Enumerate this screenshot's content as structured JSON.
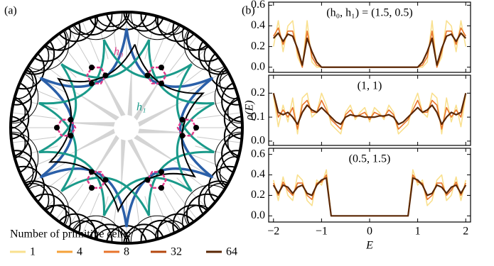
{
  "panel_labels": [
    "(a)",
    "(b)"
  ],
  "diagram": {
    "labels": [
      "h₀",
      "h₁"
    ]
  },
  "legend": {
    "title": "Number of primitive cells:",
    "entries": [
      {
        "name": "1",
        "color": "#f9e08e"
      },
      {
        "name": "4",
        "color": "#f5a23a"
      },
      {
        "name": "8",
        "color": "#e8742c"
      },
      {
        "name": "32",
        "color": "#b5480f"
      },
      {
        "name": "64",
        "color": "#5a2705"
      }
    ]
  },
  "chart_data": [
    {
      "type": "line",
      "annotation": "(h₀, h₁) = (1.5, 0.5)",
      "x": [
        -2,
        -1.9,
        -1.8,
        -1.7,
        -1.6,
        -1.5,
        -1.4,
        -1.3,
        -1.2,
        -1.1,
        -1,
        -0.9,
        -0.8,
        -0.7,
        -0.6,
        -0.5,
        -0.4,
        -0.3,
        -0.2,
        -0.1,
        0,
        0.1,
        0.2,
        0.3,
        0.4,
        0.5,
        0.6,
        0.7,
        0.8,
        0.9,
        1,
        1.1,
        1.2,
        1.3,
        1.4,
        1.5,
        1.6,
        1.7,
        1.8,
        1.9,
        2
      ],
      "xlim": [
        -2.1,
        2.1
      ],
      "ylim": [
        -0.05,
        0.63
      ],
      "yticks": [
        {
          "value": 0,
          "label": "0.0"
        },
        0.2,
        0.4,
        0.6
      ],
      "series": [
        {
          "color": "#f9e08e",
          "values": [
            0.2,
            0.45,
            0.15,
            0.4,
            0.45,
            0.1,
            0,
            0.45,
            0.05,
            0,
            0,
            0,
            0,
            0,
            0,
            0,
            0,
            0,
            0,
            0,
            0,
            0,
            0,
            0,
            0,
            0,
            0,
            0,
            0,
            0,
            0,
            0,
            0.05,
            0.45,
            0,
            0.1,
            0.45,
            0.4,
            0.15,
            0.45,
            0.2
          ]
        },
        {
          "color": "#e8742c",
          "values": [
            0.3,
            0.38,
            0.22,
            0.35,
            0.35,
            0.15,
            0,
            0.35,
            0.1,
            0.02,
            0,
            0,
            0,
            0,
            0,
            0,
            0,
            0,
            0,
            0,
            0,
            0,
            0,
            0,
            0,
            0,
            0,
            0,
            0,
            0,
            0,
            0.02,
            0.1,
            0.35,
            0,
            0.15,
            0.35,
            0.35,
            0.22,
            0.38,
            0.3
          ]
        },
        {
          "color": "#5a2705",
          "values": [
            0.28,
            0.33,
            0.25,
            0.32,
            0.3,
            0.18,
            0.02,
            0.28,
            0.15,
            0.05,
            0,
            0,
            0,
            0,
            0,
            0,
            0,
            0,
            0,
            0,
            0,
            0,
            0,
            0,
            0,
            0,
            0,
            0,
            0,
            0,
            0,
            0.05,
            0.15,
            0.28,
            0.02,
            0.18,
            0.3,
            0.32,
            0.25,
            0.33,
            0.28
          ]
        }
      ]
    },
    {
      "type": "line",
      "annotation": "(1, 1)",
      "ylabel": "ρ(E)",
      "x": [
        -2,
        -1.9,
        -1.8,
        -1.7,
        -1.6,
        -1.5,
        -1.4,
        -1.3,
        -1.2,
        -1.1,
        -1,
        -0.9,
        -0.8,
        -0.7,
        -0.6,
        -0.5,
        -0.4,
        -0.3,
        -0.2,
        -0.1,
        0,
        0.1,
        0.2,
        0.3,
        0.4,
        0.5,
        0.6,
        0.7,
        0.8,
        0.9,
        1,
        1.1,
        1.2,
        1.3,
        1.4,
        1.5,
        1.6,
        1.7,
        1.8,
        1.9,
        2
      ],
      "xlim": [
        -2.1,
        2.1
      ],
      "ylim": [
        -0.018,
        0.275
      ],
      "yticks": [
        {
          "value": 0,
          "label": "0.0"
        },
        0.1,
        0.2
      ],
      "series": [
        {
          "color": "#f9e08e",
          "values": [
            0.19,
            0.06,
            0.15,
            0.08,
            0.18,
            0.03,
            0.18,
            0.2,
            0.1,
            0.12,
            0.2,
            0.15,
            0.07,
            0.05,
            0.03,
            0.12,
            0.15,
            0.09,
            0.12,
            0.14,
            0.08,
            0.14,
            0.12,
            0.09,
            0.15,
            0.12,
            0.03,
            0.05,
            0.07,
            0.15,
            0.2,
            0.12,
            0.1,
            0.2,
            0.18,
            0.03,
            0.18,
            0.08,
            0.15,
            0.06,
            0.19
          ]
        },
        {
          "color": "#e8742c",
          "values": [
            0.2,
            0.1,
            0.13,
            0.1,
            0.14,
            0.05,
            0.15,
            0.17,
            0.12,
            0.12,
            0.17,
            0.13,
            0.09,
            0.07,
            0.05,
            0.11,
            0.13,
            0.1,
            0.11,
            0.12,
            0.09,
            0.12,
            0.11,
            0.1,
            0.13,
            0.11,
            0.05,
            0.07,
            0.09,
            0.13,
            0.17,
            0.12,
            0.12,
            0.17,
            0.15,
            0.05,
            0.14,
            0.1,
            0.13,
            0.1,
            0.2
          ]
        },
        {
          "color": "#5a2705",
          "values": [
            0.2,
            0.12,
            0.11,
            0.12,
            0.1,
            0.07,
            0.12,
            0.15,
            0.13,
            0.12,
            0.14,
            0.12,
            0.1,
            0.08,
            0.07,
            0.1,
            0.11,
            0.105,
            0.105,
            0.1,
            0.1,
            0.1,
            0.105,
            0.105,
            0.11,
            0.1,
            0.07,
            0.08,
            0.1,
            0.12,
            0.14,
            0.12,
            0.13,
            0.15,
            0.12,
            0.07,
            0.1,
            0.12,
            0.11,
            0.12,
            0.2
          ]
        }
      ]
    },
    {
      "type": "line",
      "annotation": "(0.5, 1.5)",
      "xlabel": "E",
      "x": [
        -2,
        -1.9,
        -1.8,
        -1.7,
        -1.6,
        -1.5,
        -1.4,
        -1.3,
        -1.2,
        -1.1,
        -1,
        -0.9,
        -0.8,
        -0.7,
        -0.6,
        -0.5,
        -0.4,
        -0.3,
        -0.2,
        -0.1,
        0,
        0.1,
        0.2,
        0.3,
        0.4,
        0.5,
        0.6,
        0.7,
        0.8,
        0.9,
        1,
        1.1,
        1.2,
        1.3,
        1.4,
        1.5,
        1.6,
        1.7,
        1.8,
        1.9,
        2
      ],
      "xlim": [
        -2.1,
        2.1
      ],
      "ylim": [
        -0.06,
        0.66
      ],
      "xticks": [
        {
          "value": -2,
          "label": "−2"
        },
        {
          "value": -1,
          "label": "−1"
        },
        0,
        1,
        2
      ],
      "yticks": [
        {
          "value": 0,
          "label": "0.0"
        },
        0.2,
        0.4,
        0.6
      ],
      "series": [
        {
          "color": "#f9e08e",
          "values": [
            0.35,
            0.15,
            0.38,
            0.2,
            0.15,
            0.4,
            0.35,
            0.15,
            0.1,
            0.35,
            0.3,
            0.45,
            0,
            0,
            0,
            0,
            0,
            0,
            0,
            0,
            0,
            0,
            0,
            0,
            0,
            0,
            0,
            0,
            0,
            0.45,
            0.3,
            0.35,
            0.1,
            0.15,
            0.35,
            0.4,
            0.15,
            0.2,
            0.38,
            0.15,
            0.35
          ]
        },
        {
          "color": "#e8742c",
          "values": [
            0.32,
            0.2,
            0.33,
            0.25,
            0.2,
            0.32,
            0.32,
            0.2,
            0.16,
            0.32,
            0.33,
            0.4,
            0,
            0,
            0,
            0,
            0,
            0,
            0,
            0,
            0,
            0,
            0,
            0,
            0,
            0,
            0,
            0,
            0,
            0.4,
            0.33,
            0.32,
            0.16,
            0.2,
            0.32,
            0.32,
            0.2,
            0.25,
            0.33,
            0.2,
            0.32
          ]
        },
        {
          "color": "#5a2705",
          "values": [
            0.3,
            0.22,
            0.3,
            0.28,
            0.22,
            0.28,
            0.3,
            0.22,
            0.2,
            0.3,
            0.35,
            0.37,
            0,
            0,
            0,
            0,
            0,
            0,
            0,
            0,
            0,
            0,
            0,
            0,
            0,
            0,
            0,
            0,
            0,
            0.37,
            0.35,
            0.3,
            0.2,
            0.22,
            0.3,
            0.28,
            0.22,
            0.28,
            0.3,
            0.22,
            0.3
          ]
        }
      ]
    }
  ]
}
